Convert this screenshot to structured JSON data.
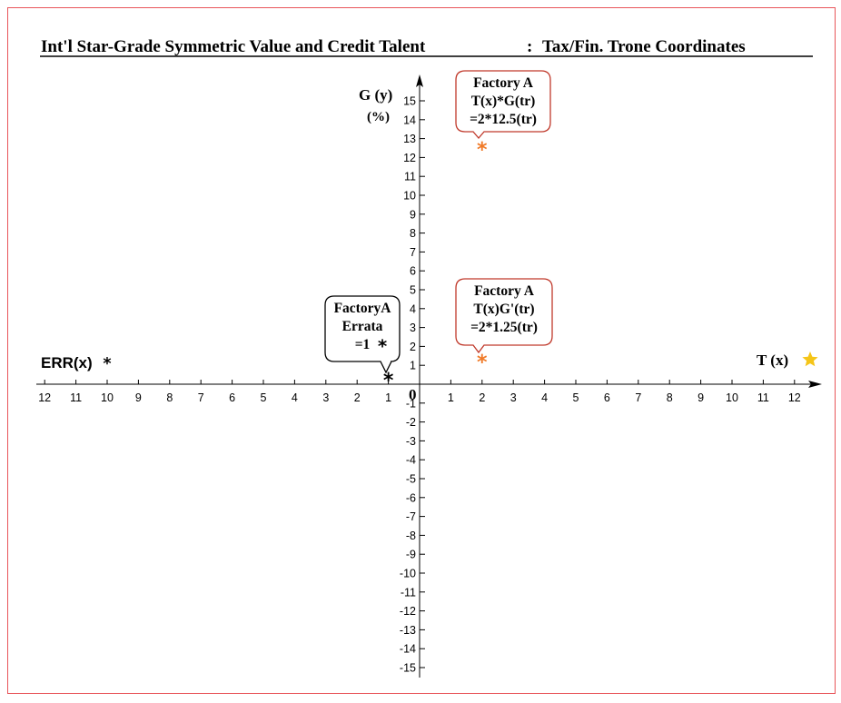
{
  "chart_data": {
    "type": "scatter",
    "title_left": "Int'l Star-Grade Symmetric Value and Credit Talent",
    "title_sep": ":",
    "title_right": "Tax/Fin. Trone Coordinates",
    "xlabel_pos": "T (x)",
    "xlabel_neg": "ERR(x)",
    "ylabel": "G (y)",
    "yunit": "(%)",
    "origin_label": "0",
    "xlim": [
      -12,
      12
    ],
    "ylim": [
      -15,
      15
    ],
    "x_ticks_pos": [
      "1",
      "2",
      "3",
      "4",
      "5",
      "6",
      "7",
      "8",
      "9",
      "10",
      "11",
      "12"
    ],
    "x_ticks_neg": [
      "1",
      "2",
      "3",
      "4",
      "5",
      "6",
      "7",
      "8",
      "9",
      "10",
      "11",
      "12"
    ],
    "y_ticks_pos": [
      "1",
      "2",
      "3",
      "4",
      "5",
      "6",
      "7",
      "8",
      "9",
      "10",
      "11",
      "12",
      "13",
      "14",
      "15"
    ],
    "y_ticks_neg": [
      "-1",
      "-2",
      "-3",
      "-4",
      "-5",
      "-6",
      "-7",
      "-8",
      "-9",
      "-10",
      "-11",
      "-12",
      "-13",
      "-14",
      "-15"
    ],
    "points": [
      {
        "x": 2,
        "y": 12.5,
        "color": "#f07a28",
        "callout": {
          "lines": [
            "Factory A",
            "T(x)*G(tr)",
            "=2*12.5(tr)"
          ],
          "border": "#c0392b"
        }
      },
      {
        "x": 2,
        "y": 1.25,
        "color": "#f07a28",
        "callout": {
          "lines": [
            "Factory A",
            "T(x)G'(tr)",
            "=2*1.25(tr)"
          ],
          "border": "#c0392b"
        }
      },
      {
        "x": -1,
        "y": 0.3,
        "color": "#000000",
        "callout": {
          "lines": [
            "FactoryA",
            "Errata",
            "=1"
          ],
          "border": "#000000"
        }
      }
    ],
    "markers": {
      "err_star_color": "#000000",
      "t_star_color": "#f5c518"
    },
    "grid": false
  }
}
